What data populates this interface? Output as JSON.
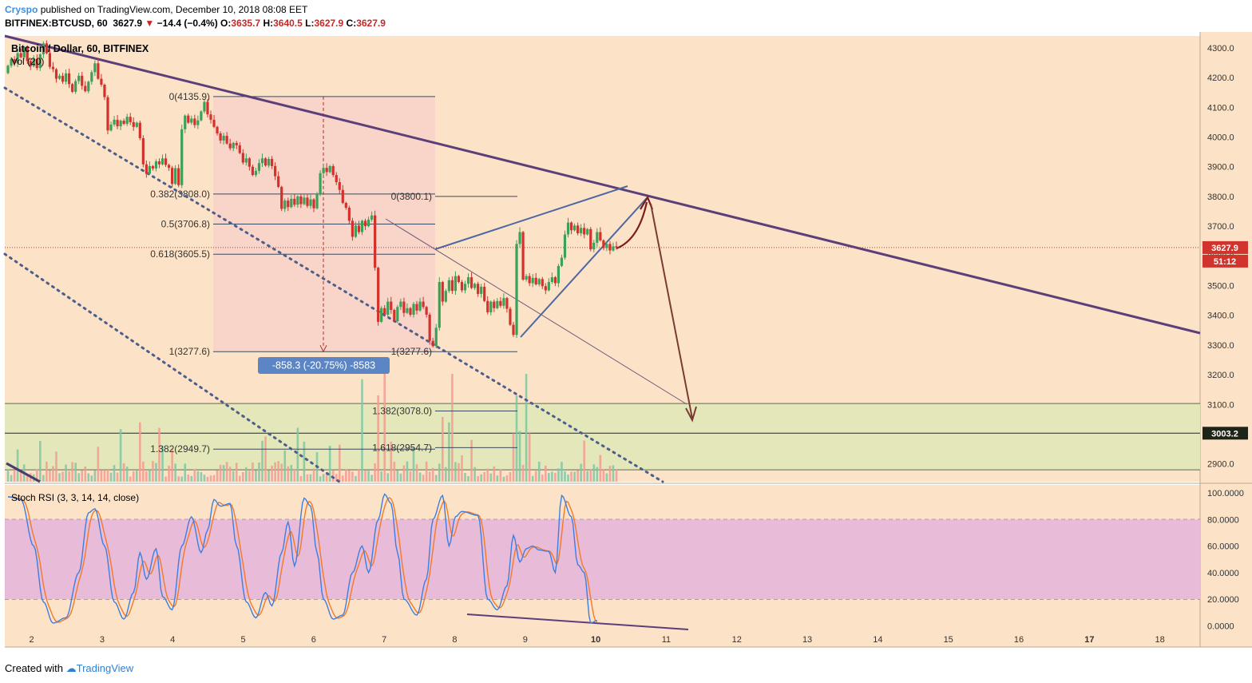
{
  "header": {
    "author": "Cryspo",
    "published_text": "published on TradingView.com, December 10, 2018 08:08 EET",
    "symbol": "BITFINEX:BTCUSD, 60",
    "last": "3627.9",
    "change": "−14.4 (−0.4%)",
    "o_label": "O:",
    "o_value": "3635.7",
    "h_label": "H:",
    "h_value": "3640.5",
    "l_label": "L:",
    "l_value": "3627.9",
    "c_label": "C:",
    "c_value": "3627.9"
  },
  "footer": {
    "created_with": "Created with",
    "brand": "TradingView"
  },
  "chart_data": {
    "type": "candlestick",
    "title": "Bitcoin / Dollar, 60, BITFINEX",
    "volume_label": "Vol (20)",
    "price_axis": {
      "ticks": [
        "4300.0",
        "4200.0",
        "4100.0",
        "4000.0",
        "3900.0",
        "3800.0",
        "3700.0",
        "3600.0",
        "3500.0",
        "3400.0",
        "3300.0",
        "3200.0",
        "3100.0",
        "3000.0",
        "2900.0"
      ],
      "ylim": [
        2840,
        4340
      ]
    },
    "time_axis": {
      "ticks": [
        "2",
        "3",
        "4",
        "5",
        "6",
        "7",
        "8",
        "9",
        "10",
        "11",
        "12",
        "13",
        "14",
        "15",
        "16",
        "17",
        "18"
      ],
      "xlim": [
        1.62,
        18.57
      ]
    },
    "last_price_badge": "3627.9",
    "countdown_badge": "51:12",
    "level_badge": "3003.2",
    "support_zone": [
      2880,
      3103
    ],
    "fib_retracement": [
      {
        "label": "0(4135.9)",
        "value": 4135.9
      },
      {
        "label": "0.382(3808.0)",
        "value": 3808.0
      },
      {
        "label": "0.5(3706.8)",
        "value": 3706.8
      },
      {
        "label": "0.618(3605.5)",
        "value": 3605.5
      },
      {
        "label": "1(3277.6)",
        "value": 3277.6
      },
      {
        "label": "1.382(2949.7)",
        "value": 2949.7
      }
    ],
    "fib_extension": [
      {
        "label": "0(3800.1)",
        "value": 3800.1
      },
      {
        "label": "1(3277.6)",
        "value": 3277.6
      },
      {
        "label": "1.382(3078.0)",
        "value": 3078.0
      },
      {
        "label": "1.618(2954.7)",
        "value": 2954.7
      }
    ],
    "measure_label": "-858.3 (-20.75%) -8583",
    "candles": [
      [
        4215,
        4240
      ],
      [
        4240,
        4262
      ],
      [
        4262,
        4248
      ],
      [
        4248,
        4282
      ],
      [
        4282,
        4268
      ],
      [
        4268,
        4302
      ],
      [
        4302,
        4256
      ],
      [
        4256,
        4238
      ],
      [
        4238,
        4262
      ],
      [
        4262,
        4232
      ],
      [
        4232,
        4278
      ],
      [
        4278,
        4315
      ],
      [
        4315,
        4282
      ],
      [
        4282,
        4236
      ],
      [
        4236,
        4228
      ],
      [
        4228,
        4196
      ],
      [
        4196,
        4206
      ],
      [
        4206,
        4186
      ],
      [
        4186,
        4214
      ],
      [
        4214,
        4178
      ],
      [
        4178,
        4152
      ],
      [
        4152,
        4188
      ],
      [
        4188,
        4206
      ],
      [
        4206,
        4172
      ],
      [
        4172,
        4154
      ],
      [
        4154,
        4186
      ],
      [
        4186,
        4218
      ],
      [
        4218,
        4248
      ],
      [
        4248,
        4196
      ],
      [
        4196,
        4176
      ],
      [
        4176,
        4134
      ],
      [
        4134,
        4022
      ],
      [
        4022,
        4042
      ],
      [
        4042,
        4058
      ],
      [
        4058,
        4036
      ],
      [
        4036,
        4055
      ],
      [
        4055,
        4044
      ],
      [
        4044,
        4068
      ],
      [
        4068,
        4050
      ],
      [
        4050,
        4034
      ],
      [
        4034,
        4048
      ],
      [
        4048,
        3996
      ],
      [
        3996,
        3908
      ],
      [
        3908,
        3876
      ],
      [
        3876,
        3902
      ],
      [
        3902,
        3894
      ],
      [
        3894,
        3918
      ],
      [
        3918,
        3908
      ],
      [
        3908,
        3928
      ],
      [
        3928,
        3906
      ],
      [
        3906,
        3896
      ],
      [
        3896,
        3842
      ],
      [
        3842,
        3895
      ],
      [
        3895,
        3838
      ],
      [
        3838,
        4026
      ],
      [
        4026,
        4072
      ],
      [
        4072,
        4048
      ],
      [
        4048,
        4062
      ],
      [
        4062,
        4040
      ],
      [
        4040,
        4056
      ],
      [
        4056,
        4086
      ],
      [
        4086,
        4118
      ],
      [
        4118,
        4076
      ],
      [
        4076,
        4058
      ],
      [
        4058,
        4034
      ],
      [
        4034,
        4012
      ],
      [
        4012,
        3988
      ],
      [
        3988,
        4004
      ],
      [
        4004,
        3978
      ],
      [
        3978,
        3962
      ],
      [
        3962,
        3980
      ],
      [
        3980,
        3972
      ],
      [
        3972,
        3946
      ],
      [
        3946,
        3914
      ],
      [
        3914,
        3928
      ],
      [
        3928,
        3900
      ],
      [
        3900,
        3872
      ],
      [
        3872,
        3886
      ],
      [
        3886,
        3912
      ],
      [
        3912,
        3928
      ],
      [
        3928,
        3904
      ],
      [
        3904,
        3926
      ],
      [
        3926,
        3902
      ],
      [
        3902,
        3868
      ],
      [
        3868,
        3832
      ],
      [
        3832,
        3758
      ],
      [
        3758,
        3786
      ],
      [
        3786,
        3764
      ],
      [
        3764,
        3792
      ],
      [
        3792,
        3772
      ],
      [
        3772,
        3800
      ],
      [
        3800,
        3774
      ],
      [
        3774,
        3796
      ],
      [
        3796,
        3768
      ],
      [
        3768,
        3790
      ],
      [
        3790,
        3760
      ],
      [
        3760,
        3808
      ],
      [
        3808,
        3878
      ],
      [
        3878,
        3896
      ],
      [
        3896,
        3882
      ],
      [
        3882,
        3902
      ],
      [
        3902,
        3872
      ],
      [
        3872,
        3848
      ],
      [
        3848,
        3822
      ],
      [
        3822,
        3778
      ],
      [
        3778,
        3762
      ],
      [
        3762,
        3718
      ],
      [
        3718,
        3664
      ],
      [
        3664,
        3702
      ],
      [
        3702,
        3680
      ],
      [
        3680,
        3718
      ],
      [
        3718,
        3700
      ],
      [
        3700,
        3722
      ],
      [
        3722,
        3736
      ],
      [
        3736,
        3560
      ],
      [
        3560,
        3378
      ],
      [
        3378,
        3424
      ],
      [
        3424,
        3402
      ],
      [
        3402,
        3446
      ],
      [
        3446,
        3418
      ],
      [
        3418,
        3380
      ],
      [
        3380,
        3428
      ],
      [
        3428,
        3446
      ],
      [
        3446,
        3408
      ],
      [
        3408,
        3424
      ],
      [
        3424,
        3402
      ],
      [
        3402,
        3438
      ],
      [
        3438,
        3416
      ],
      [
        3416,
        3446
      ],
      [
        3446,
        3428
      ],
      [
        3428,
        3402
      ],
      [
        3402,
        3314
      ],
      [
        3314,
        3296
      ],
      [
        3296,
        3358
      ],
      [
        3358,
        3512
      ],
      [
        3512,
        3446
      ],
      [
        3446,
        3482
      ],
      [
        3482,
        3518
      ],
      [
        3518,
        3482
      ],
      [
        3482,
        3532
      ],
      [
        3532,
        3512
      ],
      [
        3512,
        3484
      ],
      [
        3484,
        3506
      ],
      [
        3506,
        3528
      ],
      [
        3528,
        3492
      ],
      [
        3492,
        3506
      ],
      [
        3506,
        3472
      ],
      [
        3472,
        3496
      ],
      [
        3496,
        3448
      ],
      [
        3448,
        3410
      ],
      [
        3410,
        3446
      ],
      [
        3446,
        3424
      ],
      [
        3424,
        3448
      ],
      [
        3448,
        3432
      ],
      [
        3432,
        3458
      ],
      [
        3458,
        3422
      ],
      [
        3422,
        3368
      ],
      [
        3368,
        3334
      ],
      [
        3334,
        3640
      ],
      [
        3640,
        3680
      ],
      [
        3680,
        3520
      ],
      [
        3520,
        3532
      ],
      [
        3532,
        3508
      ],
      [
        3508,
        3526
      ],
      [
        3526,
        3504
      ],
      [
        3504,
        3522
      ],
      [
        3522,
        3498
      ],
      [
        3498,
        3484
      ],
      [
        3484,
        3512
      ],
      [
        3512,
        3528
      ],
      [
        3528,
        3508
      ],
      [
        3508,
        3566
      ],
      [
        3566,
        3594
      ],
      [
        3594,
        3672
      ],
      [
        3672,
        3712
      ],
      [
        3712,
        3686
      ],
      [
        3686,
        3702
      ],
      [
        3702,
        3676
      ],
      [
        3676,
        3694
      ],
      [
        3694,
        3672
      ],
      [
        3672,
        3690
      ],
      [
        3690,
        3622
      ],
      [
        3622,
        3644
      ],
      [
        3644,
        3680
      ],
      [
        3680,
        3652
      ],
      [
        3652,
        3626
      ],
      [
        3626,
        3640
      ],
      [
        3640,
        3618
      ],
      [
        3618,
        3632
      ],
      [
        3632,
        3627.9
      ]
    ],
    "stoch_rsi": {
      "label": "Stoch RSI (3, 3, 14, 14, close)",
      "ticks": [
        "100.0000",
        "80.0000",
        "60.0000",
        "40.0000",
        "20.0000",
        "0.0000"
      ],
      "ylim": [
        -4,
        106
      ],
      "upper_band": 80,
      "lower_band": 20,
      "k_knots": [
        [
          0,
          97
        ],
        [
          4,
          95
        ],
        [
          8,
          60
        ],
        [
          11,
          18
        ],
        [
          14,
          2
        ],
        [
          18,
          6
        ],
        [
          22,
          40
        ],
        [
          25,
          85
        ],
        [
          27,
          88
        ],
        [
          30,
          60
        ],
        [
          33,
          18
        ],
        [
          36,
          5
        ],
        [
          39,
          25
        ],
        [
          41,
          55
        ],
        [
          43,
          35
        ],
        [
          46,
          58
        ],
        [
          48,
          22
        ],
        [
          51,
          12
        ],
        [
          54,
          60
        ],
        [
          57,
          82
        ],
        [
          60,
          55
        ],
        [
          62,
          72
        ],
        [
          64,
          95
        ],
        [
          66,
          90
        ],
        [
          69,
          92
        ],
        [
          71,
          60
        ],
        [
          74,
          18
        ],
        [
          77,
          6
        ],
        [
          80,
          25
        ],
        [
          82,
          15
        ],
        [
          85,
          55
        ],
        [
          87,
          78
        ],
        [
          89,
          45
        ],
        [
          92,
          96
        ],
        [
          94,
          90
        ],
        [
          96,
          55
        ],
        [
          98,
          20
        ],
        [
          101,
          5
        ],
        [
          104,
          8
        ],
        [
          107,
          40
        ],
        [
          110,
          60
        ],
        [
          112,
          40
        ],
        [
          115,
          80
        ],
        [
          117,
          99
        ],
        [
          119,
          92
        ],
        [
          121,
          55
        ],
        [
          123,
          20
        ],
        [
          127,
          8
        ],
        [
          130,
          35
        ],
        [
          132,
          80
        ],
        [
          135,
          98
        ],
        [
          137,
          60
        ],
        [
          139,
          82
        ],
        [
          141,
          86
        ],
        [
          146,
          83
        ],
        [
          149,
          20
        ],
        [
          152,
          12
        ],
        [
          155,
          30
        ],
        [
          157,
          68
        ],
        [
          159,
          48
        ],
        [
          161,
          58
        ],
        [
          163,
          60
        ],
        [
          165,
          57
        ],
        [
          168,
          56
        ],
        [
          170,
          40
        ],
        [
          172,
          98
        ],
        [
          175,
          82
        ],
        [
          177,
          46
        ],
        [
          179,
          40
        ],
        [
          181,
          2
        ],
        [
          183,
          4
        ]
      ]
    }
  }
}
